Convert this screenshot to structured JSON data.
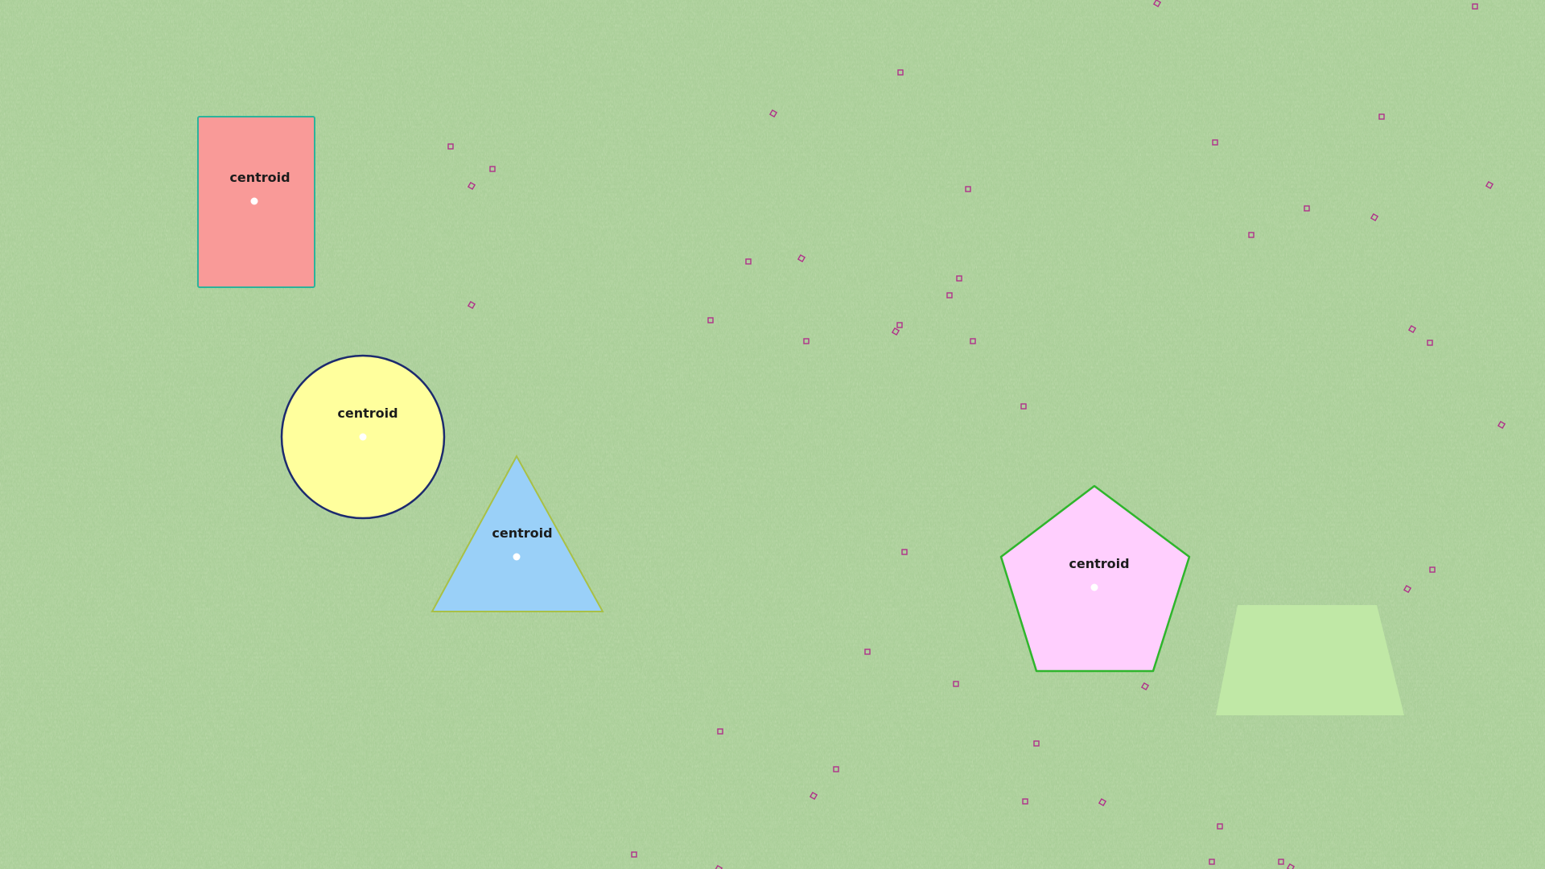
{
  "colors": {
    "background": "#8fc07a",
    "rectangle": "#f99a98",
    "circle": "#ffff9d",
    "triangle": "#9ad0f8",
    "pentagon": "#ffcffe",
    "trapezoid": "#c0e8a6",
    "point_marker": "#ffffff"
  },
  "shapes": {
    "rectangle": {
      "label": "centroid"
    },
    "circle": {
      "label": "centroid"
    },
    "triangle": {
      "label": "centroid"
    },
    "pentagon": {
      "label": "centroid"
    },
    "trapezoid": {
      "label": ""
    }
  }
}
